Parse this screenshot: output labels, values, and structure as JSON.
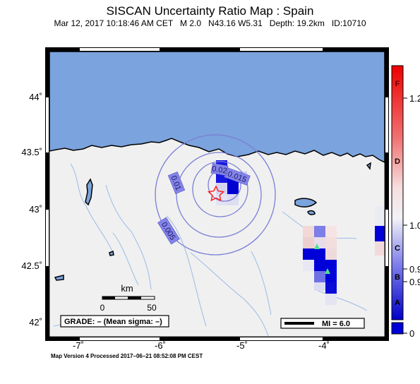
{
  "title": "SISCAN Uncertainty Ratio Map : Spain",
  "subtitle": {
    "datetime": "Mar 12, 2017 10:18:46 AM CET",
    "magnitude": "M 2.0",
    "location": "N43.16 W5.31",
    "depth": "Depth: 19.2km",
    "id": "ID:10710"
  },
  "axes": {
    "lat_ticks": [
      "44˚",
      "43.5˚",
      "43˚",
      "42.5˚",
      "42˚"
    ],
    "lon_ticks": [
      "-7˚",
      "-6˚",
      "-5˚",
      "-4˚"
    ]
  },
  "contours": [
    "0.005",
    "0.01",
    "0.015",
    "0.02"
  ],
  "scale_bar": {
    "unit": "km",
    "ticks": [
      "0",
      "50"
    ]
  },
  "grade_label": "GRADE: – (Mean sigma: –)",
  "mi_label": "MI = 6.0",
  "colorbar": {
    "letters": [
      "F",
      "D",
      "C",
      "B",
      "A"
    ],
    "values": [
      "1.2",
      "1.0",
      "0.9",
      "0.9",
      "0"
    ]
  },
  "colors": {
    "sea": "#7ba3dd",
    "land": "#f0f0f0",
    "contour": "#7a7ed6",
    "deep_blue": "#0000d8",
    "epicenter": "#ff2020",
    "station": "#50e090"
  },
  "footer": "Map Version 4 Processed 2017–06–21 08:52:08 PM CEST"
}
